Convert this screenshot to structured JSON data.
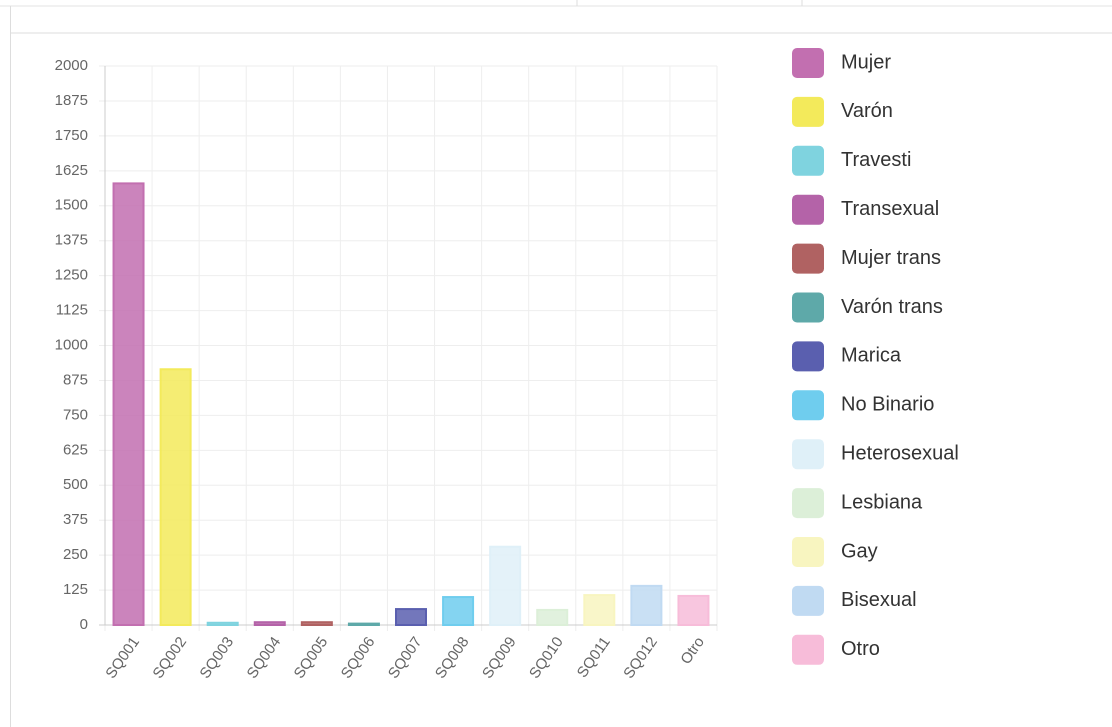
{
  "chart_data": {
    "type": "bar",
    "categories": [
      "SQ001",
      "SQ002",
      "SQ003",
      "SQ004",
      "SQ005",
      "SQ006",
      "SQ007",
      "SQ008",
      "SQ009",
      "SQ010",
      "SQ011",
      "SQ012",
      "Otro"
    ],
    "values": [
      1580,
      915,
      8,
      10,
      10,
      5,
      57,
      100,
      280,
      54,
      107,
      140,
      104
    ],
    "colors": [
      "#c26fb0",
      "#f3ea5b",
      "#7fd3df",
      "#b463a8",
      "#b06262",
      "#5ea9a9",
      "#5a5faf",
      "#6fcdee",
      "#dff0f8",
      "#dcefd8",
      "#f8f5c0",
      "#c0daf2",
      "#f7bcd9"
    ],
    "legend": [
      "Mujer",
      "Varón",
      "Travesti",
      "Transexual",
      "Mujer trans",
      "Varón trans",
      "Marica",
      "No Binario",
      "Heterosexual",
      "Lesbiana",
      "Gay",
      "Bisexual",
      "Otro"
    ],
    "legend_position": "right",
    "ylim": [
      0,
      2000
    ],
    "yticks": [
      0,
      125,
      250,
      375,
      500,
      625,
      750,
      875,
      1000,
      1125,
      1250,
      1375,
      1500,
      1625,
      1750,
      1875,
      2000
    ],
    "grid": true
  }
}
